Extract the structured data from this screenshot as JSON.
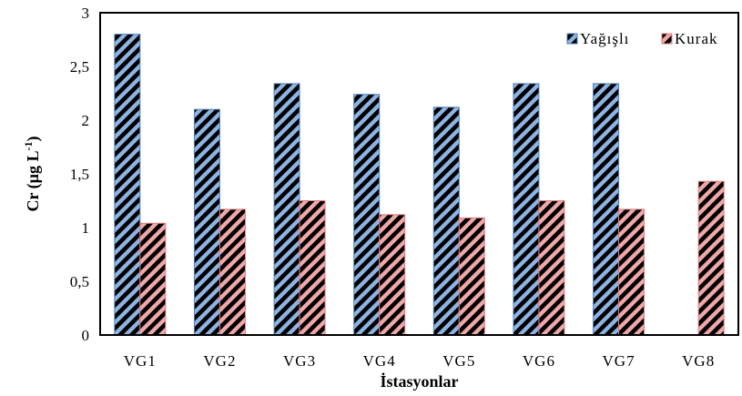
{
  "chart_data": {
    "type": "bar",
    "categories": [
      "VG1",
      "VG2",
      "VG3",
      "VG4",
      "VG5",
      "VG6",
      "VG7",
      "VG8"
    ],
    "series": [
      {
        "name": "Yağışlı",
        "values": [
          2.8,
          2.1,
          2.34,
          2.24,
          2.12,
          2.34,
          2.34,
          null
        ],
        "color": "#4f81bd"
      },
      {
        "name": "Kurak",
        "values": [
          1.04,
          1.17,
          1.25,
          1.12,
          1.09,
          1.25,
          1.17,
          1.43
        ],
        "color": "#e07b7b"
      }
    ],
    "xlabel": "İstasyonlar",
    "ylabel": "Cr (µg L",
    "ylabel_superscript": "-1",
    "ylabel_suffix": ")",
    "ylim": [
      0,
      3
    ],
    "yticks": [
      0,
      0.5,
      1,
      1.5,
      2,
      2.5,
      3
    ],
    "ytick_labels": [
      "0",
      "0,5",
      "1",
      "1,5",
      "2",
      "2,5",
      "3"
    ],
    "legend_position": "top-right",
    "grid": false
  }
}
